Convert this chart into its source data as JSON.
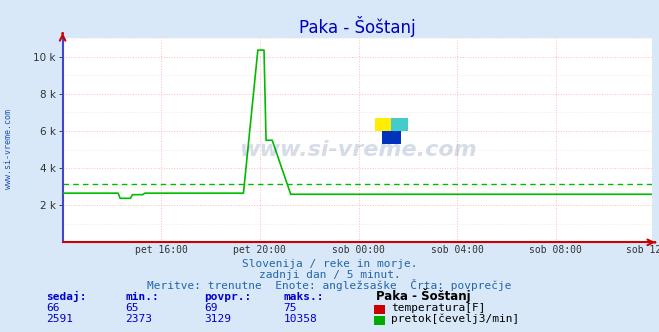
{
  "title": "Paka - Šoštanj",
  "bg_color": "#d8e8f8",
  "plot_bg_color": "#ffffff",
  "grid_color_major": "#ffbbbb",
  "grid_color_minor": "#ffd8d8",
  "xlabel_ticks": [
    "pet 16:00",
    "pet 20:00",
    "sob 00:00",
    "sob 04:00",
    "sob 08:00",
    "sob 12:00"
  ],
  "ylabel_ticks": [
    "2 k",
    "4 k",
    "6 k",
    "8 k",
    "10 k"
  ],
  "ylabel_values": [
    2000,
    4000,
    6000,
    8000,
    10000
  ],
  "ylim": [
    0,
    11000
  ],
  "n_points": 288,
  "flow_color": "#00bb00",
  "avg_color": "#00bb00",
  "axis_left_color": "#4444cc",
  "axis_bottom_color": "#cc0000",
  "subtitle1": "Slovenija / reke in morje.",
  "subtitle2": "zadnji dan / 5 minut.",
  "subtitle3": "Meritve: trenutne  Enote: angležsaške  Črta: povprečje",
  "legend_title": "Paka - Šoštanj",
  "row1_labels": [
    "sedaj:",
    "min.:",
    "povpr.:",
    "maks.:"
  ],
  "temp_row": [
    "66",
    "65",
    "69",
    "75"
  ],
  "flow_row": [
    "2591",
    "2373",
    "3129",
    "10358"
  ],
  "temp_label": "temperatura[F]",
  "flow_label": "pretok[čevelj3/min]",
  "avg_flow": 3129,
  "base_flow": 2650,
  "base_flow_after": 2591,
  "base_flow_low": 2373,
  "spike_peak": 10358,
  "spike_drop": 5500,
  "watermark_text": "www.si-vreme.com",
  "watermark_color": "#2255aa",
  "logo_yellow": "#ffee00",
  "logo_cyan": "#44cccc",
  "logo_blue": "#0033bb"
}
